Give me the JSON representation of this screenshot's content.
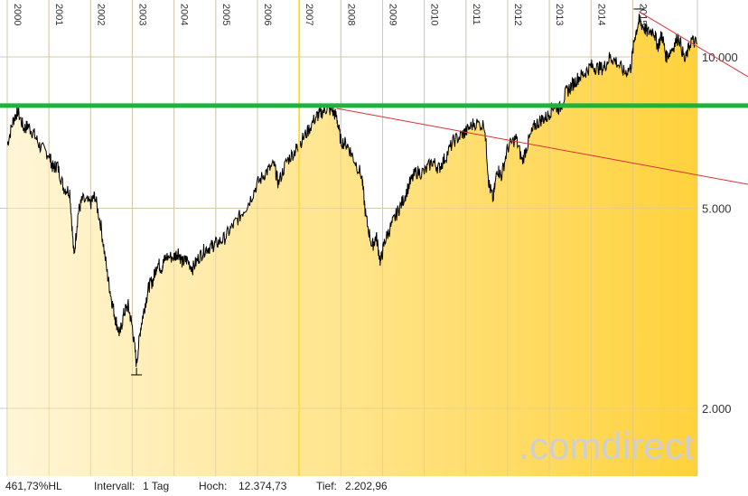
{
  "chart_data": {
    "type": "area",
    "scale": "log",
    "grid": true,
    "colors": {
      "fill_light": "#fff6d8",
      "fill_dark": "#ffd23c",
      "line": "#000000",
      "support": "#22b03a",
      "trend": "#d9303a",
      "marker": "#ffd84a"
    },
    "x_tick_labels": [
      "2000",
      "2001",
      "2002",
      "2003",
      "2004",
      "2005",
      "2006",
      "2007",
      "2008",
      "2009",
      "2010",
      "2011",
      "2012",
      "2013",
      "2014",
      "2015"
    ],
    "y_tick_labels": [
      {
        "value": 10000,
        "label": "10.000"
      },
      {
        "value": 5000,
        "label": "5.000"
      },
      {
        "value": 2000,
        "label": "2.000"
      }
    ],
    "ylim": [
      1300,
      14500
    ],
    "xlim": [
      2000.0,
      2016.55
    ],
    "support_level": 8000,
    "highlight_year": 2007.0,
    "series": [
      {
        "x": [
          2000.0,
          2000.15,
          2000.25,
          2000.4,
          2000.5,
          2000.65,
          2000.8,
          2001.0,
          2001.1,
          2001.2,
          2001.35,
          2001.5,
          2001.6,
          2001.7,
          2001.8,
          2002.0,
          2002.1,
          2002.25,
          2002.4,
          2002.5,
          2002.6,
          2002.7,
          2002.8,
          2002.9,
          2003.0,
          2003.1,
          2003.2,
          2003.3,
          2003.4,
          2003.5,
          2003.6,
          2003.7,
          2003.8,
          2004.0,
          2004.1,
          2004.2,
          2004.3,
          2004.45,
          2004.6,
          2004.75,
          2004.9,
          2005.0,
          2005.2,
          2005.4,
          2005.6,
          2005.8,
          2006.0,
          2006.2,
          2006.4,
          2006.5,
          2006.7,
          2006.9,
          2007.0,
          2007.2,
          2007.4,
          2007.5,
          2007.65,
          2007.8,
          2007.9,
          2008.0,
          2008.15,
          2008.3,
          2008.5,
          2008.6,
          2008.75,
          2008.85,
          2008.95,
          2009.05,
          2009.2,
          2009.35,
          2009.5,
          2009.65,
          2009.8,
          2010.0,
          2010.2,
          2010.35,
          2010.5,
          2010.7,
          2010.9,
          2011.0,
          2011.2,
          2011.45,
          2011.55,
          2011.65,
          2011.75,
          2011.85,
          2012.0,
          2012.2,
          2012.35,
          2012.5,
          2012.65,
          2012.8,
          2012.95,
          2013.1,
          2013.25,
          2013.4,
          2013.55,
          2013.7,
          2013.85,
          2014.0,
          2014.15,
          2014.3,
          2014.45,
          2014.6,
          2014.8,
          2014.95,
          2015.05,
          2015.15,
          2015.25,
          2015.35,
          2015.5,
          2015.6,
          2015.7,
          2015.8,
          2015.95,
          2016.1,
          2016.25,
          2016.4,
          2016.55
        ],
        "values": [
          6700,
          7500,
          7800,
          7200,
          7300,
          7000,
          6600,
          6400,
          6000,
          6100,
          5500,
          5400,
          4000,
          4900,
          5200,
          5100,
          5300,
          4600,
          3700,
          3300,
          3000,
          2800,
          3100,
          3200,
          2900,
          2450,
          2900,
          3200,
          3500,
          3600,
          3900,
          3800,
          4000,
          4000,
          4100,
          3900,
          3950,
          3800,
          4000,
          4150,
          4200,
          4250,
          4350,
          4600,
          4850,
          5150,
          5600,
          5900,
          6100,
          5600,
          6200,
          6500,
          6700,
          7100,
          7600,
          7700,
          7900,
          7800,
          7600,
          6800,
          6700,
          6300,
          5800,
          4800,
          4200,
          4400,
          3900,
          4300,
          4600,
          4900,
          5200,
          5600,
          5900,
          5900,
          6200,
          6000,
          6300,
          6800,
          7000,
          7100,
          7400,
          7300,
          5600,
          5200,
          6000,
          5800,
          6600,
          6900,
          6200,
          6800,
          7300,
          7500,
          7600,
          8000,
          7900,
          8500,
          8800,
          9100,
          9300,
          9600,
          9500,
          9500,
          10000,
          9800,
          9300,
          9500,
          11000,
          11800,
          11500,
          11200,
          11300,
          10500,
          11100,
          10000,
          10400,
          11000,
          9800,
          10800,
          10600
        ]
      }
    ]
  },
  "branding": {
    "logo_text": ".comdirect"
  },
  "footer": {
    "range_label": "461,73%HL",
    "interval_label": "Intervall:",
    "interval_value": "1 Tag",
    "high_label": "Hoch:",
    "high_value": "12.374,73",
    "low_label": "Tief:",
    "low_value": "2.202,96"
  }
}
